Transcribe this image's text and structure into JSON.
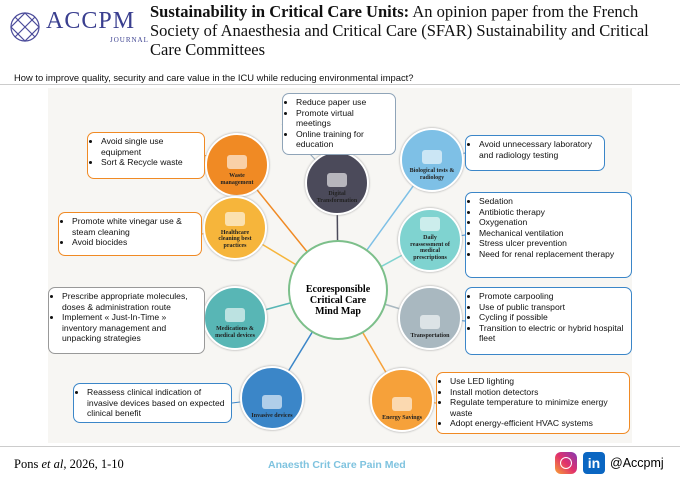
{
  "header": {
    "logo": "ACCPM",
    "logo_sub": "JOURNAL",
    "title_bold": "Sustainability in Critical Care Units:",
    "title_rest": "An opinion paper from the French Society of Anaesthesia and Critical Care (SFAR) Sustainability and Critical Care Committees"
  },
  "question": "How to improve quality, security and care value in the ICU while reducing environmental impact?",
  "center": "Ecoresponsible Critical Care Mind Map",
  "nodes": [
    {
      "label": "Waste management",
      "items": [
        "Avoid single use equipment",
        "Sort & Recycle waste"
      ]
    },
    {
      "label": "Digital Transformation",
      "items": [
        "Reduce paper use",
        "Promote virtual meetings",
        "Online training for education"
      ]
    },
    {
      "label": "Biological tests & radiology",
      "items": [
        "Avoid unnecessary laboratory and radiology testing"
      ]
    },
    {
      "label": "Healthcare cleaning best practices",
      "items": [
        "Promote white vinegar use & steam cleaning",
        "Avoid biocides"
      ]
    },
    {
      "label": "Daily reassessment of medical prescriptions",
      "items": [
        "Sedation",
        "Antibiotic therapy",
        "Oxygenation",
        "Mechanical ventilation",
        "Stress ulcer prevention",
        "Need for renal replacement therapy"
      ]
    },
    {
      "label": "Medications & medical devices",
      "items": [
        "Prescribe appropriate molecules, doses & administration route",
        "Implement « Just-In-Time » inventory management and unpacking strategies"
      ]
    },
    {
      "label": "Transportation",
      "items": [
        "Promote carpooling",
        "Use of public transport",
        "Cycling if possible",
        "Transition to electric or hybrid hospital fleet"
      ]
    },
    {
      "label": "Invasive devices",
      "items": [
        "Reassess clinical indication of invasive devices based on expected clinical benefit"
      ]
    },
    {
      "label": "Energy Savings",
      "items": [
        "Use LED lighting",
        "Install motion detectors",
        "Regulate temperature to minimize energy waste",
        "Adopt energy-efficient HVAC systems"
      ]
    }
  ],
  "footer": {
    "author": "Pons",
    "etal": "et al",
    "citation": ", 2026, 1-10",
    "journal": "Anaesth Crit Care Pain Med",
    "linkedin": "in",
    "handle": "@Accpmj"
  }
}
